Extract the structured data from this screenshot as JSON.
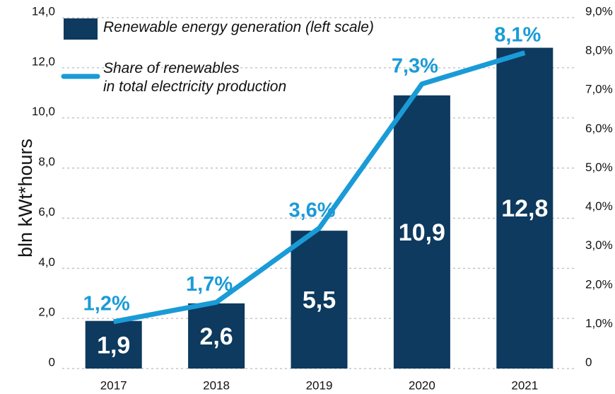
{
  "chart_data": {
    "type": "bar",
    "y_label": "bln kWt*hours",
    "categories": [
      "2017",
      "2018",
      "2019",
      "2020",
      "2021"
    ],
    "series": [
      {
        "name": "Renewable energy generation (left scale)",
        "type": "bar",
        "color": "#0d3a5e",
        "values": [
          1.9,
          2.6,
          5.5,
          10.9,
          12.8
        ],
        "value_labels": [
          "1,9",
          "2,6",
          "5,5",
          "10,9",
          "12,8"
        ]
      },
      {
        "name": "Share of renewables\nin total electricity production",
        "type": "line",
        "axis": "y2",
        "color": "#1a9bd7",
        "values": [
          1.2,
          1.7,
          3.6,
          7.3,
          8.1
        ],
        "value_labels": [
          "1,2%",
          "1,7%",
          "3,6%",
          "7,3%",
          "8,1%"
        ]
      }
    ],
    "ylim": [
      0,
      14
    ],
    "yticks": [
      0,
      {
        "value": 2,
        "label": "2,0"
      },
      {
        "value": 4,
        "label": "4,0"
      },
      {
        "value": 6,
        "label": "6,0"
      },
      {
        "value": 8,
        "label": "8,0"
      },
      {
        "value": 10,
        "label": "10,0"
      },
      {
        "value": 12,
        "label": "12,0"
      },
      {
        "value": 14,
        "label": "14,0"
      }
    ],
    "y2lim": [
      0,
      9
    ],
    "y2ticks": [
      0,
      {
        "value": 1,
        "label": "1,0%"
      },
      {
        "value": 2,
        "label": "2,0%"
      },
      {
        "value": 3,
        "label": "3,0%"
      },
      {
        "value": 4,
        "label": "4,0%"
      },
      {
        "value": 5,
        "label": "5,0%"
      },
      {
        "value": 6,
        "label": "6,0%"
      },
      {
        "value": 7,
        "label": "7,0%"
      },
      {
        "value": 8,
        "label": "8,0%"
      },
      {
        "value": 9,
        "label": "9,0%"
      }
    ],
    "grid": true
  }
}
